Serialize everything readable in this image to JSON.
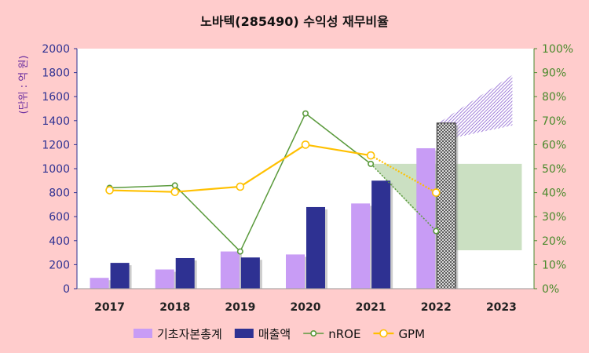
{
  "chart_data": {
    "type": "bar",
    "title": "노바텍(285490) 수익성 재무비율",
    "ylabel": "(단위 : 억 원)",
    "categories": [
      "2017",
      "2018",
      "2019",
      "2020",
      "2021",
      "2022",
      "2023"
    ],
    "ylim": [
      0,
      2000
    ],
    "y2lim": [
      0,
      100
    ],
    "y_ticks": [
      "0",
      "200",
      "400",
      "600",
      "800",
      "1000",
      "1200",
      "1400",
      "1600",
      "1800",
      "2000"
    ],
    "y2_ticks": [
      "0%",
      "10%",
      "20%",
      "30%",
      "40%",
      "50%",
      "60%",
      "70%",
      "80%",
      "90%",
      "100%"
    ],
    "grid": false,
    "legend_position": "bottom",
    "series": [
      {
        "name": "기초자본총계",
        "kind": "bar",
        "axis": "left",
        "color": "#c89cf5",
        "values": [
          90,
          160,
          310,
          285,
          710,
          1170,
          null
        ]
      },
      {
        "name": "매출액",
        "kind": "bar",
        "axis": "left",
        "color": "#2e3192",
        "values": [
          215,
          255,
          260,
          680,
          900,
          1380,
          null
        ],
        "estimated": [
          false,
          false,
          false,
          false,
          false,
          true,
          false
        ]
      },
      {
        "name": "nROE",
        "kind": "line",
        "axis": "right",
        "color": "#5a9a3c",
        "values": [
          42,
          43,
          15.5,
          73,
          52,
          24,
          null
        ],
        "estimated": [
          false,
          false,
          false,
          false,
          false,
          true,
          false
        ]
      },
      {
        "name": "GPM",
        "kind": "line",
        "axis": "right",
        "color": "#ffc000",
        "values": [
          41,
          40.3,
          42.5,
          60,
          55.5,
          40,
          null
        ],
        "estimated": [
          false,
          false,
          false,
          false,
          false,
          true,
          false
        ]
      }
    ],
    "annotations": [
      {
        "kind": "band",
        "series": "nROE",
        "category": "2023",
        "range": [
          16,
          52
        ],
        "color": "#b5d3a8"
      },
      {
        "kind": "cone",
        "series": "nROE",
        "from_category": "2021",
        "to_category": "2022",
        "range": [
          23,
          52
        ],
        "color": "#b5d3a8"
      },
      {
        "kind": "hatched-band",
        "series": "매출액",
        "category": "2023",
        "range_start": [
          1230,
          1380
        ],
        "range_end": [
          1360,
          1780
        ],
        "color": "#8a5fd0"
      }
    ]
  }
}
